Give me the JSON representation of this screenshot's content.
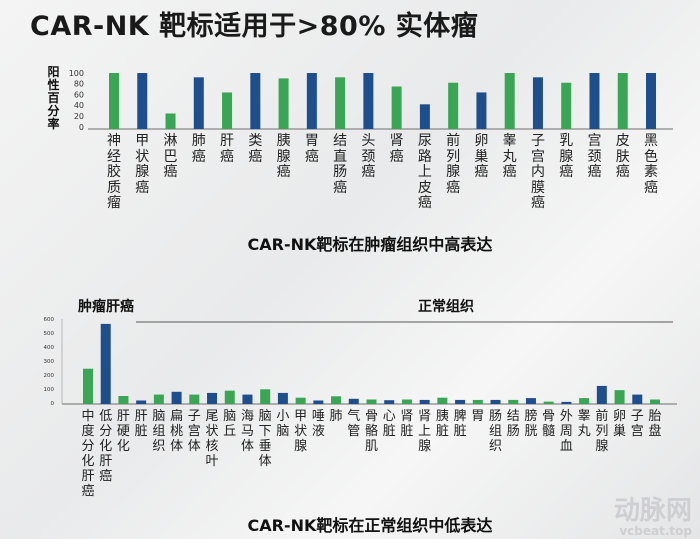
{
  "title": "CAR-NK 靶标适用于>80% 实体瘤",
  "colors": {
    "green": "#3aa655",
    "blue": "#1f4e8c"
  },
  "watermark": {
    "logo": "动脉网",
    "site": "vcbeat.top"
  },
  "chart_data": [
    {
      "type": "bar",
      "ylabel": "阳性百分率",
      "caption": "CAR-NK靶标在肿瘤组织中高表达",
      "ylim": [
        0,
        100
      ],
      "yticks": [
        "0",
        "20",
        "40",
        "60",
        "80",
        "100"
      ],
      "categories": [
        "神经胶质瘤",
        "甲状腺癌",
        "淋巴癌",
        "肺癌",
        "肝癌",
        "类癌",
        "胰腺癌",
        "胃癌",
        "结直肠癌",
        "头颈癌",
        "肾癌",
        "尿路上皮癌",
        "前列腺癌",
        "卵巢癌",
        "睾丸癌",
        "子宫内膜癌",
        "乳腺癌",
        "宫颈癌",
        "皮肤癌",
        "黑色素癌"
      ],
      "values": [
        100,
        100,
        25,
        92,
        64,
        100,
        90,
        100,
        92,
        100,
        75,
        42,
        82,
        64,
        100,
        92,
        82,
        100,
        100,
        100
      ],
      "bar_colors": [
        "green",
        "blue",
        "green",
        "blue",
        "green",
        "blue",
        "green",
        "blue",
        "green",
        "blue",
        "green",
        "blue",
        "green",
        "blue",
        "green",
        "blue",
        "green",
        "blue",
        "green",
        "blue"
      ]
    },
    {
      "type": "bar",
      "caption": "CAR-NK靶标在正常组织中低表达",
      "group_labels": {
        "tumor": "肿瘤肝癌",
        "normal": "正常组织"
      },
      "ylim": [
        0,
        600
      ],
      "yticks": [
        "0",
        "100",
        "200",
        "300",
        "400",
        "500",
        "600"
      ],
      "categories": [
        "中度分化肝癌",
        "低分化肝癌",
        "肝硬化",
        "肝脏",
        "脑组织",
        "扁桃体",
        "子宫体",
        "尾状核叶",
        "脑丘",
        "海马体",
        "脑下垂体",
        "小脑",
        "甲状腺",
        "唾液",
        "肺",
        "气管",
        "骨骼肌",
        "心脏",
        "肾脏",
        "肾上腺",
        "胰脏",
        "脾脏",
        "胃",
        "肠组织",
        "结肠",
        "膀胱",
        "骨髓",
        "外周血",
        "睾丸",
        "前列腺",
        "卵巢",
        "子宫",
        "胎盘"
      ],
      "values": [
        245,
        565,
        50,
        18,
        60,
        80,
        60,
        72,
        88,
        60,
        98,
        72,
        38,
        18,
        48,
        30,
        25,
        20,
        25,
        22,
        38,
        22,
        22,
        22,
        22,
        35,
        10,
        8,
        35,
        122,
        92,
        60,
        25
      ],
      "bar_colors": [
        "green",
        "blue",
        "green",
        "blue",
        "green",
        "blue",
        "green",
        "blue",
        "green",
        "blue",
        "green",
        "blue",
        "green",
        "blue",
        "green",
        "blue",
        "green",
        "blue",
        "green",
        "blue",
        "green",
        "blue",
        "green",
        "blue",
        "green",
        "blue",
        "green",
        "blue",
        "green",
        "blue",
        "green",
        "blue",
        "green"
      ]
    }
  ]
}
